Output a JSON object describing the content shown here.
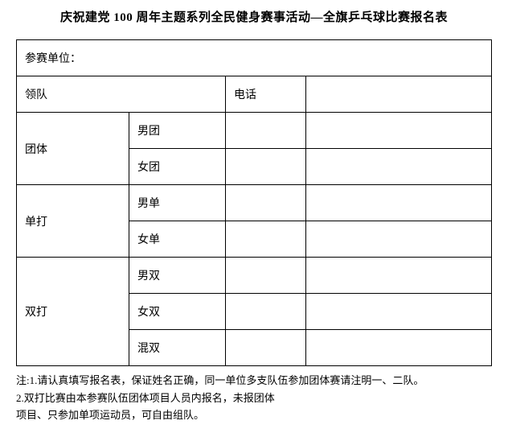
{
  "title": "庆祝建党 100 周年主题系列全民健身赛事活动—全旗乒乓球比赛报名表",
  "table": {
    "unit_label": "参赛单位：",
    "leader_label": "领队",
    "phone_label": "电话",
    "team_label": "团体",
    "men_team": "男团",
    "women_team": "女团",
    "singles_label": "单打",
    "men_singles": "男单",
    "women_singles": "女单",
    "doubles_label": "双打",
    "men_doubles": "男双",
    "women_doubles": "女双",
    "mixed_doubles": "混双"
  },
  "notes": {
    "line1": "注:1.请认真填写报名表，保证姓名正确，同一单位多支队伍参加团体赛请注明一、二队。",
    "line2": "2.双打比赛由本参赛队伍团体项目人员内报名，未报团体",
    "line3": "项目、只参加单项运动员，可自由组队。"
  },
  "colors": {
    "background": "#ffffff",
    "border": "#000000",
    "text": "#000000"
  },
  "font": {
    "family": "SimSun",
    "title_size": 15,
    "body_size": 14,
    "notes_size": 13
  }
}
